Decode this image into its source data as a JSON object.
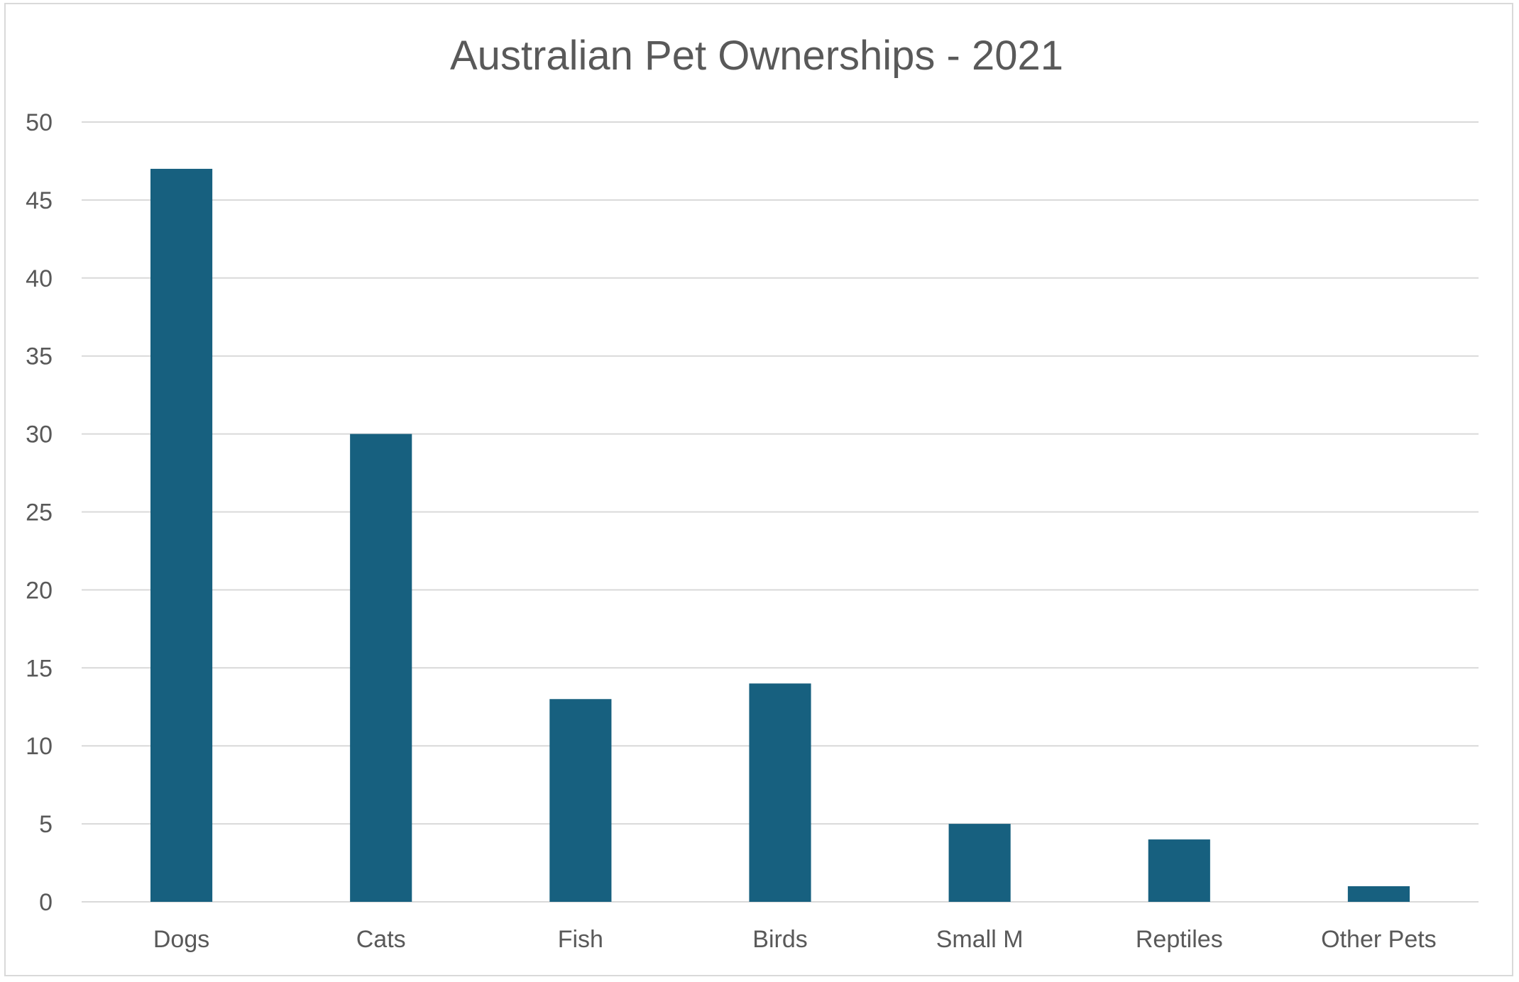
{
  "chart_data": {
    "type": "bar",
    "title": "Australian Pet Ownerships - 2021",
    "xlabel": "",
    "ylabel": "",
    "categories": [
      "Dogs",
      "Cats",
      "Fish",
      "Birds",
      "Small M",
      "Reptiles",
      "Other Pets"
    ],
    "values": [
      47,
      30,
      13,
      14,
      5,
      4,
      1
    ],
    "ylim": [
      0,
      50
    ],
    "yticks": [
      0,
      5,
      10,
      15,
      20,
      25,
      30,
      35,
      40,
      45,
      50
    ],
    "grid": true,
    "legend": "none",
    "bar_color": "#17607f"
  }
}
